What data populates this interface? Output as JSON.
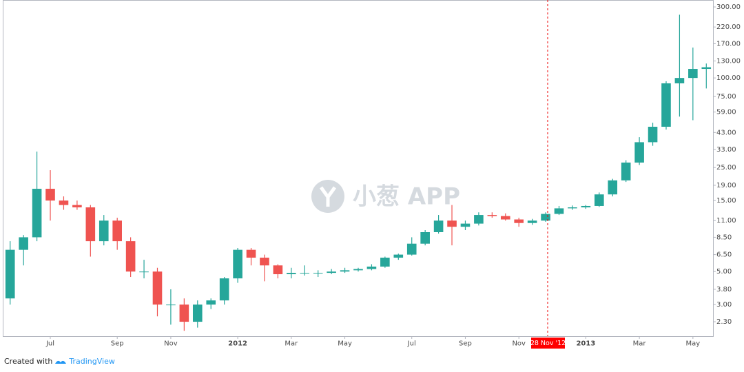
{
  "chart_data": {
    "type": "candlestick",
    "watermark": "小葱 APP",
    "crosshair_label": "28 Nov '12",
    "footer": {
      "prefix": "Created with",
      "brand": "TradingView"
    },
    "log_scale": true,
    "up_color": "#26a69a",
    "down_color": "#ef5350",
    "categories": [
      null,
      null,
      null,
      "Jul",
      null,
      null,
      null,
      null,
      "Sep",
      null,
      null,
      null,
      "Nov",
      null,
      null,
      null,
      null,
      "2012",
      null,
      null,
      null,
      "Mar",
      null,
      null,
      null,
      "May",
      null,
      null,
      null,
      null,
      "Jul",
      null,
      null,
      null,
      "Sep",
      null,
      null,
      null,
      "Nov",
      null,
      null,
      null,
      null,
      "2013",
      null,
      null,
      null,
      "Mar",
      null,
      null,
      null,
      "May",
      null
    ],
    "open": [
      3.3,
      7,
      8.5,
      18,
      15,
      14,
      13.5,
      8,
      11,
      8,
      5,
      5,
      3,
      3,
      2.3,
      3.0,
      3.2,
      4.5,
      7,
      6.2,
      5.5,
      4.8,
      4.9,
      4.9,
      4.9,
      5.0,
      5.1,
      5.2,
      5.4,
      6.2,
      6.5,
      7.7,
      9.2,
      11,
      10,
      10.5,
      12,
      11.8,
      11.2,
      10.6,
      11,
      12.2,
      13.3,
      13.5,
      13.8,
      16.5,
      20.5,
      27,
      37,
      47,
      92,
      100,
      115
    ],
    "high": [
      8,
      8.8,
      32,
      24,
      16,
      15,
      14,
      12,
      11.5,
      8.5,
      6,
      5.3,
      3.8,
      3.3,
      3.2,
      3.3,
      4.6,
      7.2,
      7.2,
      6.5,
      5.6,
      5.3,
      5.5,
      5.1,
      5.2,
      5.3,
      5.3,
      5.6,
      6.3,
      6.6,
      8.5,
      9.5,
      12,
      14,
      11,
      12.5,
      12.5,
      12.3,
      11.5,
      11.3,
      12.5,
      13.8,
      13.9,
      14,
      17,
      21,
      28,
      40,
      50,
      95,
      266,
      160,
      125
    ],
    "low": [
      3,
      5.5,
      8,
      11,
      13,
      13,
      6.3,
      7.5,
      7,
      4.6,
      4.5,
      2.5,
      2.2,
      2,
      2.1,
      2.8,
      3,
      4.2,
      5.5,
      4.3,
      4.5,
      4.5,
      4.7,
      4.6,
      4.8,
      4.9,
      5.0,
      5.1,
      5.3,
      6.0,
      6.4,
      7.5,
      9,
      7.5,
      9.5,
      10.2,
      11.5,
      11,
      10,
      10.3,
      10.8,
      12,
      13,
      13.2,
      13.6,
      16,
      20,
      26,
      35,
      45,
      55,
      52,
      85
    ],
    "close": [
      7,
      8.5,
      18,
      15,
      14,
      13.5,
      8,
      11,
      8,
      5,
      5,
      3,
      3,
      2.3,
      3.0,
      3.2,
      4.5,
      7,
      6.2,
      5.5,
      4.8,
      4.9,
      4.9,
      4.9,
      5.0,
      5.1,
      5.2,
      5.4,
      6.2,
      6.5,
      7.7,
      9.2,
      11,
      10,
      10.5,
      12,
      11.8,
      11.2,
      10.6,
      11,
      12.2,
      13.3,
      13.5,
      13.8,
      16.5,
      20.5,
      27,
      37,
      47,
      92,
      100,
      115,
      118
    ],
    "ylim": [
      1.84,
      334
    ],
    "yticks": [
      {
        "value": 300,
        "label": "300.00"
      },
      {
        "value": 220,
        "label": "220.00"
      },
      {
        "value": 170,
        "label": "170.00"
      },
      {
        "value": 130,
        "label": "130.00"
      },
      {
        "value": 100,
        "label": "100.00"
      },
      {
        "value": 75,
        "label": "75.00"
      },
      {
        "value": 59,
        "label": "59.00"
      },
      {
        "value": 43,
        "label": "43.00"
      },
      {
        "value": 33,
        "label": "33.00"
      },
      {
        "value": 25,
        "label": "25.00"
      },
      {
        "value": 19,
        "label": "19.00"
      },
      {
        "value": 15,
        "label": "15.00"
      },
      {
        "value": 11,
        "label": "11.00"
      },
      {
        "value": 8.5,
        "label": "8.50"
      },
      {
        "value": 6.5,
        "label": "6.50"
      },
      {
        "value": 5,
        "label": "5.00"
      },
      {
        "value": 3.8,
        "label": "3.80"
      },
      {
        "value": 3.0,
        "label": "3.00"
      },
      {
        "value": 2.3,
        "label": "2.30"
      }
    ]
  }
}
